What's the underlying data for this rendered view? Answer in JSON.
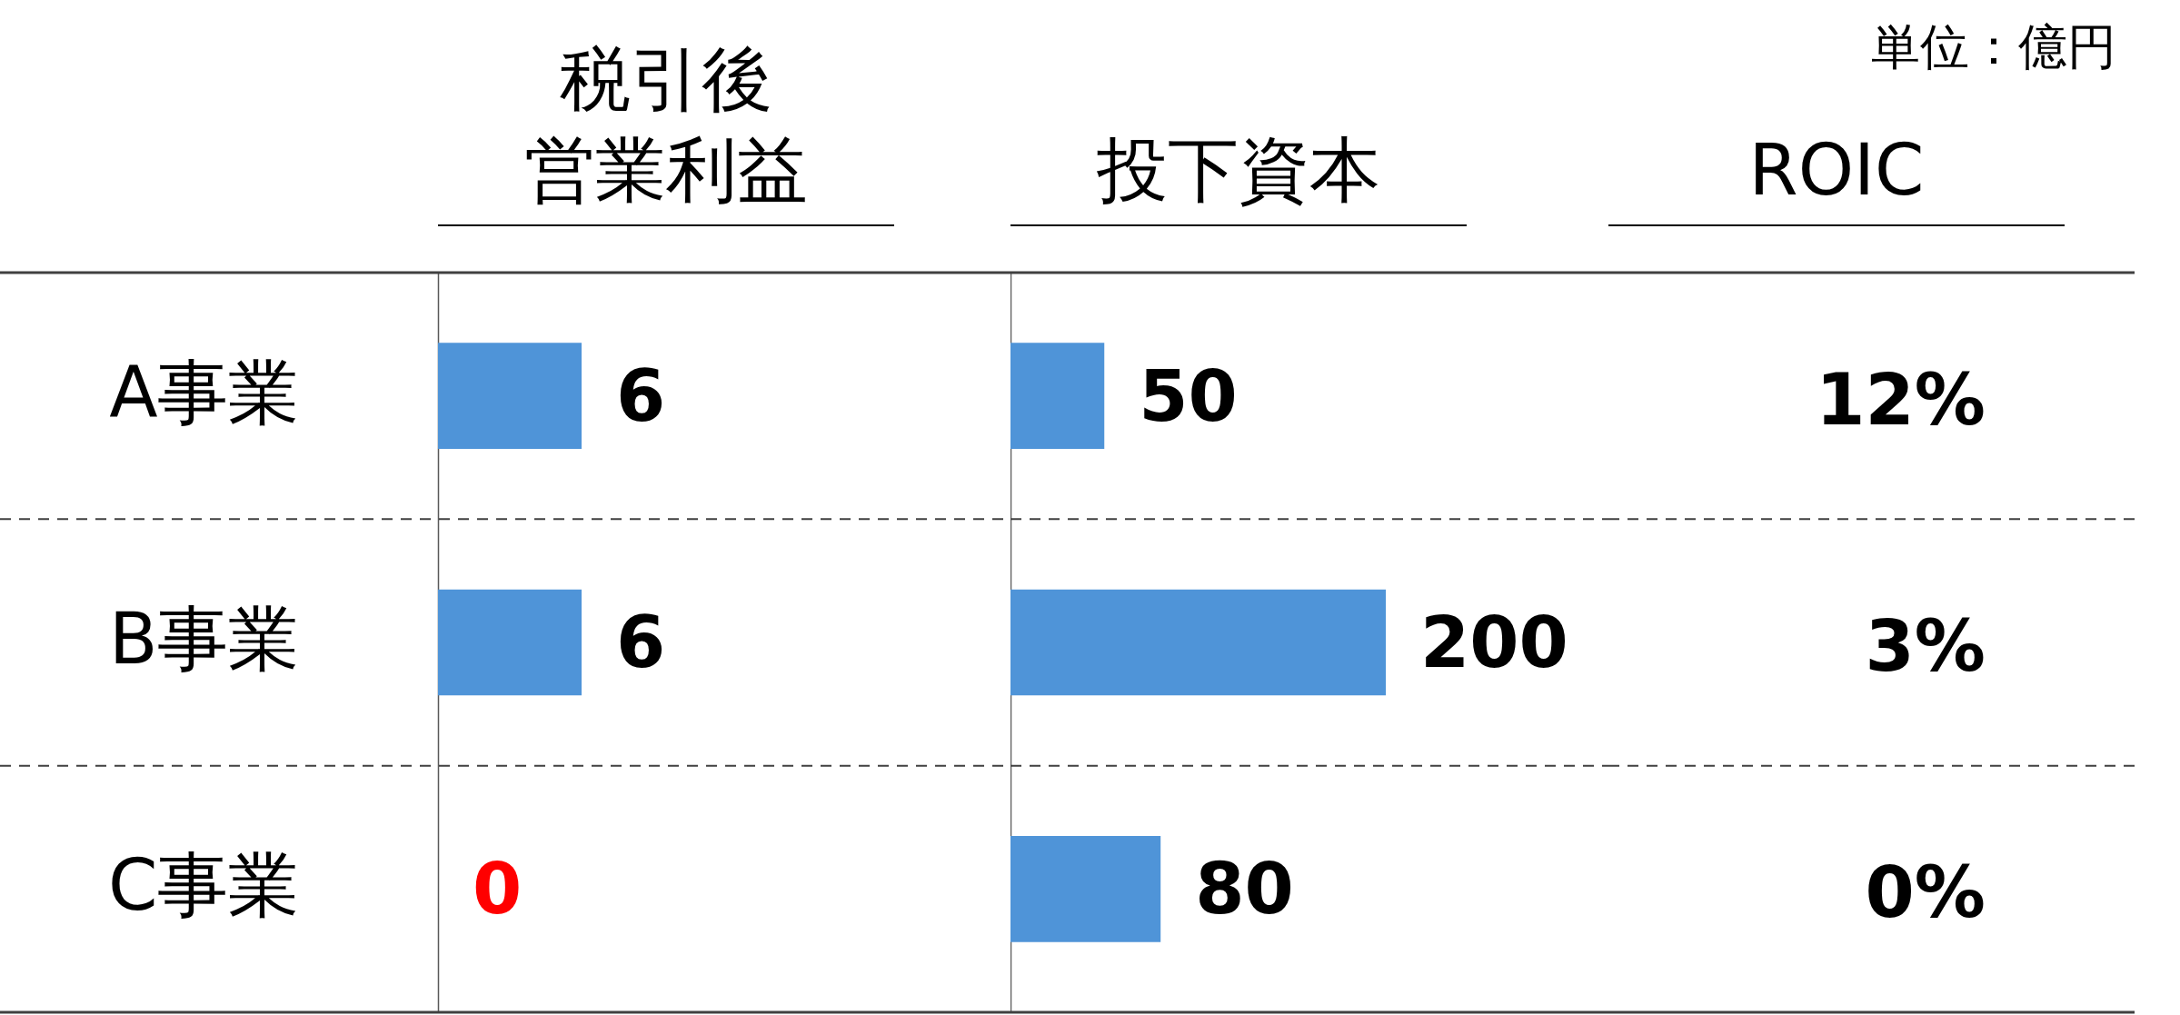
{
  "chart_data": [
    {
      "type": "bar",
      "orientation": "horizontal",
      "title": "税引後営業利益",
      "categories": [
        "A事業",
        "B事業",
        "C事業"
      ],
      "values": [
        6,
        6,
        0
      ],
      "colors": [
        "#4f94d8",
        "#4f94d8",
        "#ff0000"
      ],
      "data_labels": true,
      "tick_labels": "y"
    },
    {
      "type": "bar",
      "orientation": "horizontal",
      "title": "投下資本",
      "categories": [
        null,
        null,
        null
      ],
      "values": [
        50,
        200,
        80
      ],
      "color": "#4f94d8",
      "data_labels": true,
      "tick_labels": false
    },
    {
      "type": "other",
      "title": "ROIC",
      "categories": [
        null,
        null,
        null
      ],
      "value_labels": [
        "12%",
        "3%",
        "0%"
      ],
      "annotations": [
        "単位：億円"
      ]
    }
  ]
}
